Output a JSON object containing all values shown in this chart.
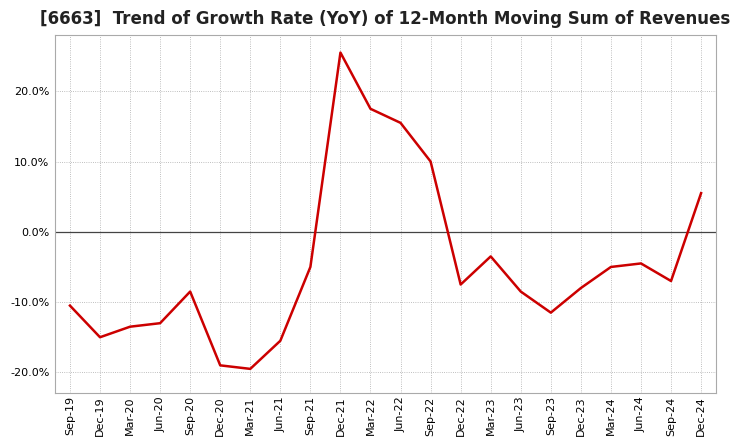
{
  "title": "[6663]  Trend of Growth Rate (YoY) of 12-Month Moving Sum of Revenues",
  "x_labels": [
    "Sep-19",
    "Dec-19",
    "Mar-20",
    "Jun-20",
    "Sep-20",
    "Dec-20",
    "Mar-21",
    "Jun-21",
    "Sep-21",
    "Dec-21",
    "Mar-22",
    "Jun-22",
    "Sep-22",
    "Dec-22",
    "Mar-23",
    "Jun-23",
    "Sep-23",
    "Dec-23",
    "Mar-24",
    "Jun-24",
    "Sep-24",
    "Dec-24"
  ],
  "y_values": [
    -10.5,
    -15.0,
    -13.5,
    -13.0,
    -8.5,
    -19.0,
    -19.5,
    -15.5,
    -5.0,
    25.5,
    17.5,
    15.5,
    10.0,
    -7.5,
    -3.5,
    -8.5,
    -11.5,
    -8.0,
    -5.0,
    -4.5,
    -7.0,
    5.5
  ],
  "line_color": "#cc0000",
  "background_color": "#ffffff",
  "grid_color": "#aaaaaa",
  "zero_line_color": "#444444",
  "border_color": "#aaaaaa",
  "ylim": [
    -23,
    28
  ],
  "yticks": [
    -20.0,
    -10.0,
    0.0,
    10.0,
    20.0
  ],
  "title_fontsize": 12,
  "tick_fontsize": 8,
  "line_width": 1.8
}
